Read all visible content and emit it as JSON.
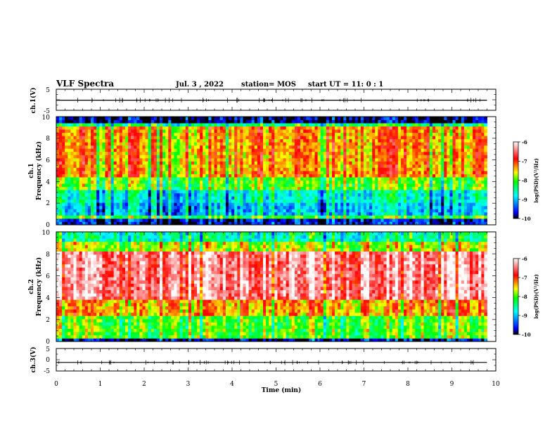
{
  "header": {
    "title": "VLF Spectra",
    "date": "Jul. 3 , 2022",
    "station": "station= MOS",
    "start": "start UT = 11: 0 : 1"
  },
  "chart_data": [
    {
      "type": "line",
      "panel": "ch1-waveform",
      "ylabel": "ch.1(V)",
      "ylim": [
        -5,
        5
      ],
      "yticks": [
        "5",
        "-5"
      ],
      "xlim": [
        0,
        10
      ],
      "x": [
        0,
        1,
        2,
        3,
        4,
        5,
        6,
        7,
        8,
        9,
        9.8
      ],
      "y": [
        -0.2,
        -0.2,
        -0.2,
        -0.2,
        -0.2,
        -0.2,
        -0.2,
        -0.2,
        -0.2,
        -0.2,
        -0.2
      ]
    },
    {
      "type": "heatmap",
      "panel": "ch1-spectrogram",
      "ylabel": "ch.1\nFrequency (kHz)",
      "ylabel_line1": "ch.1",
      "ylabel_line2": "Frequency (kHz)",
      "ylim": [
        0,
        10
      ],
      "yticks": [
        "0",
        "2",
        "4",
        "6",
        "8",
        "10"
      ],
      "xlim": [
        0,
        10
      ],
      "data_end_min": 9.8,
      "frequency_bands_khz": [
        {
          "from": 0,
          "to": 0.5,
          "level": -9.6
        },
        {
          "from": 0.5,
          "to": 1.0,
          "level": -8.0
        },
        {
          "from": 1.0,
          "to": 2.0,
          "level": -8.9
        },
        {
          "from": 2.0,
          "to": 3.2,
          "level": -8.6
        },
        {
          "from": 3.2,
          "to": 4.5,
          "level": -7.9
        },
        {
          "from": 4.5,
          "to": 9.0,
          "level": -7.2
        },
        {
          "from": 9.0,
          "to": 9.5,
          "level": -8.3
        },
        {
          "from": 9.5,
          "to": 10,
          "level": -9.8
        }
      ],
      "colorbar": {
        "label": "log(PSD)(V²/Hz)",
        "range": [
          -10,
          -6
        ],
        "ticks": [
          "-6",
          "-7",
          "-8",
          "-9",
          "-10"
        ]
      }
    },
    {
      "type": "heatmap",
      "panel": "ch2-spectrogram",
      "ylabel": "ch.2\nFrequency (kHz)",
      "ylabel_line1": "ch.2",
      "ylabel_line2": "Frequency (kHz)",
      "ylim": [
        0,
        10
      ],
      "yticks": [
        "0",
        "2",
        "4",
        "6",
        "8",
        "10"
      ],
      "xlim": [
        0,
        10
      ],
      "data_end_min": 9.8,
      "frequency_bands_khz": [
        {
          "from": 0,
          "to": 0.2,
          "level": -9.6
        },
        {
          "from": 0.2,
          "to": 2.5,
          "level": -7.9
        },
        {
          "from": 2.5,
          "to": 3.8,
          "level": -7.2
        },
        {
          "from": 3.8,
          "to": 8.2,
          "level": -6.3
        },
        {
          "from": 8.2,
          "to": 9.0,
          "level": -7.6
        },
        {
          "from": 9.0,
          "to": 10,
          "level": -8.4
        }
      ],
      "colorbar": {
        "label": "log(PSD)(V²/Hz)",
        "range": [
          -10,
          -6
        ],
        "ticks": [
          "-6",
          "-7",
          "-8",
          "-9",
          "-10"
        ]
      }
    },
    {
      "type": "line",
      "panel": "ch3-waveform",
      "ylabel": "ch.3(V)",
      "ylim": [
        -5,
        5
      ],
      "yticks": [
        "5",
        "0",
        "-5"
      ],
      "xlim": [
        0,
        10
      ],
      "x": [
        0,
        1,
        2,
        3,
        4,
        5,
        6,
        7,
        8,
        9,
        9.8
      ],
      "y": [
        -1.2,
        -1.2,
        -1.2,
        -1.2,
        -1.2,
        -1.2,
        -1.2,
        -1.2,
        -1.2,
        -1.2,
        -1.2
      ]
    }
  ],
  "xaxis": {
    "label": "Time (min)",
    "ticks": [
      "0",
      "1",
      "2",
      "3",
      "4",
      "5",
      "6",
      "7",
      "8",
      "9",
      "10"
    ]
  },
  "colors": {
    "background": "#ffffff",
    "axis": "#000000",
    "colormap": [
      "#000000",
      "#0000ff",
      "#00ffff",
      "#00ff00",
      "#ffff00",
      "#ff0000",
      "#ffffff"
    ]
  }
}
